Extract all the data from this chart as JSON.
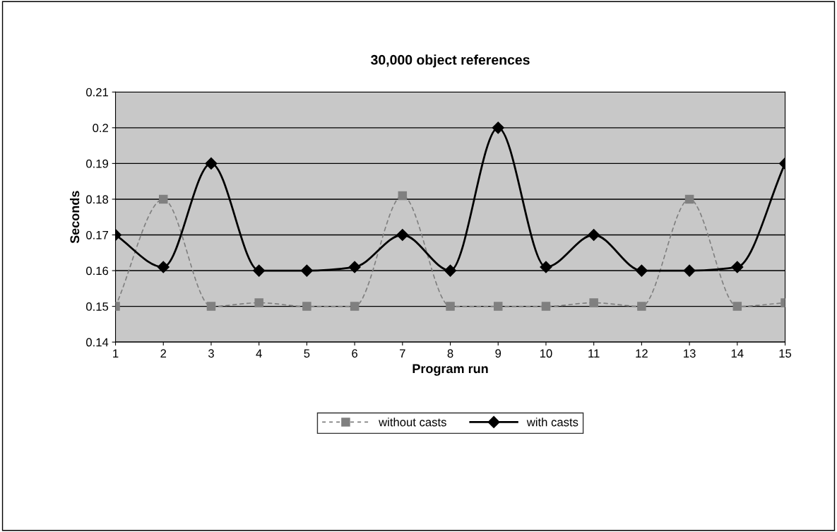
{
  "chart_data": {
    "type": "line",
    "title": "30,000 object references",
    "xlabel": "Program run",
    "ylabel": "Seconds",
    "x": [
      1,
      2,
      3,
      4,
      5,
      6,
      7,
      8,
      9,
      10,
      11,
      12,
      13,
      14,
      15
    ],
    "series": [
      {
        "name": "without casts",
        "color": "#808080",
        "marker": "square",
        "line_style": "dashed",
        "values": [
          0.15,
          0.18,
          0.15,
          0.151,
          0.15,
          0.15,
          0.181,
          0.15,
          0.15,
          0.15,
          0.151,
          0.15,
          0.18,
          0.15,
          0.151
        ]
      },
      {
        "name": "with casts",
        "color": "#000000",
        "marker": "diamond",
        "line_style": "solid",
        "values": [
          0.17,
          0.161,
          0.19,
          0.16,
          0.16,
          0.161,
          0.17,
          0.16,
          0.2,
          0.161,
          0.17,
          0.16,
          0.16,
          0.161,
          0.19
        ]
      }
    ],
    "xlim": [
      1,
      15
    ],
    "xticks": [
      1,
      2,
      3,
      4,
      5,
      6,
      7,
      8,
      9,
      10,
      11,
      12,
      13,
      14,
      15
    ],
    "ylim": [
      0.14,
      0.21
    ],
    "yticks": [
      0.14,
      0.15,
      0.16,
      0.17,
      0.18,
      0.19,
      0.2,
      0.21
    ],
    "grid": "y",
    "legend": "bottom"
  }
}
